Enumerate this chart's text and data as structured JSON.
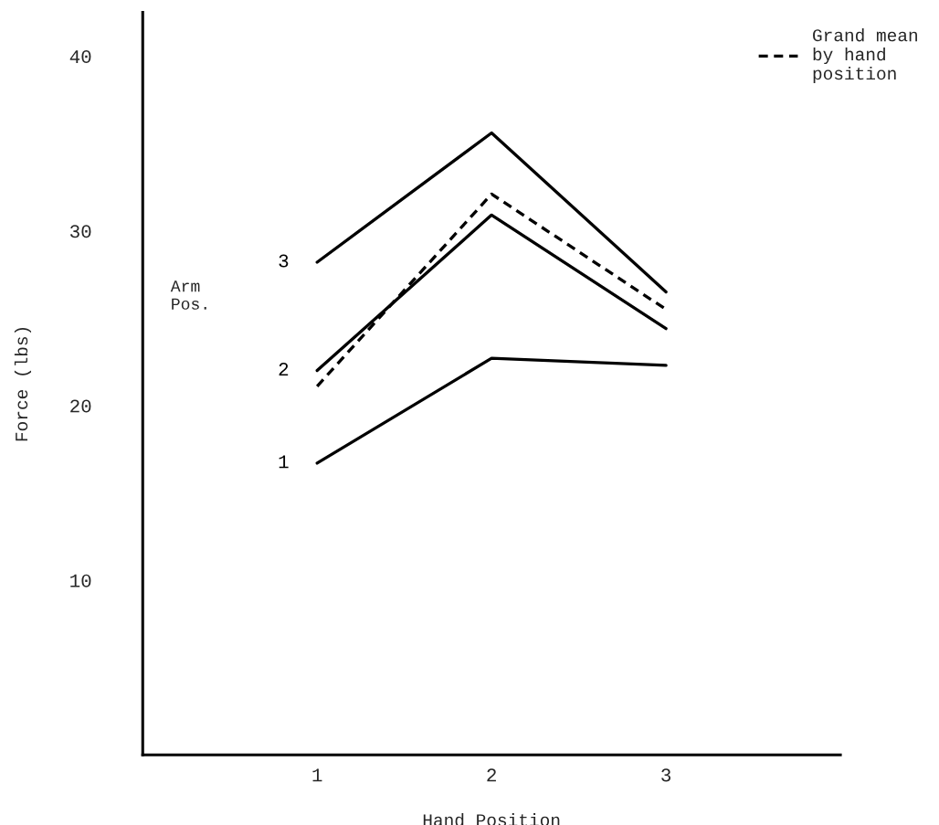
{
  "chart_data": {
    "type": "line",
    "xlabel": "Hand Position",
    "ylabel": "Force (lbs)",
    "x": [
      1,
      2,
      3
    ],
    "series": [
      {
        "name": "3",
        "color": "#000000",
        "values": [
          28.2,
          35.6,
          26.5
        ]
      },
      {
        "name": "2",
        "color": "#000000",
        "values": [
          22.0,
          30.9,
          24.4
        ]
      },
      {
        "name": "1",
        "color": "#000000",
        "values": [
          16.7,
          22.7,
          22.3
        ]
      },
      {
        "name": "Grand mean\nby hand\nposition",
        "color": "#000000",
        "values": [
          21.1,
          32.1,
          25.5
        ],
        "line_style": "dashed"
      }
    ],
    "annotations": [
      "Arm\nPos."
    ],
    "xlim": [
      0,
      4
    ],
    "xticks": [
      1,
      2,
      3
    ],
    "ylim": [
      0,
      42.5
    ],
    "yticks": [
      10,
      20,
      30,
      40
    ],
    "grid": false,
    "legend": "top right",
    "marker": "none"
  }
}
